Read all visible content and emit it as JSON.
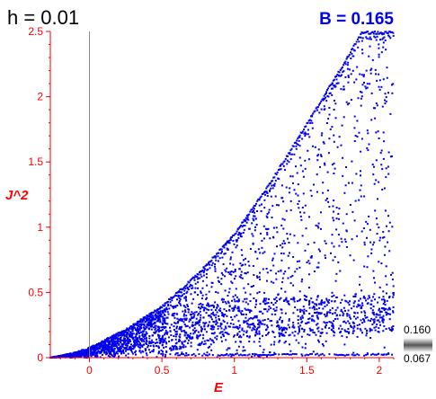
{
  "header": {
    "left_label": "h = 0.01",
    "right_label": "B = 0.165"
  },
  "colors": {
    "points": "#0000ee",
    "axes": "#ff0000",
    "label_right": "#0000ee",
    "vline": "#888888"
  },
  "colorbar": {
    "max_label": "0.160",
    "min_label": "0.067"
  },
  "chart_data": {
    "type": "scatter",
    "xlabel": "E",
    "ylabel": "J^2",
    "xlim": [
      -0.27,
      2.1
    ],
    "ylim": [
      0,
      2.5
    ],
    "xticks": [
      0,
      0.5,
      1,
      1.5,
      2
    ],
    "yticks": [
      0,
      0.5,
      1,
      1.5,
      2,
      2.5
    ],
    "reference_line_x": 0,
    "grid": false,
    "envelope": [
      {
        "x": -0.27,
        "y": 0.0
      },
      {
        "x": -0.1,
        "y": 0.04
      },
      {
        "x": 0.0,
        "y": 0.08
      },
      {
        "x": 0.25,
        "y": 0.22
      },
      {
        "x": 0.5,
        "y": 0.4
      },
      {
        "x": 0.75,
        "y": 0.65
      },
      {
        "x": 1.0,
        "y": 0.95
      },
      {
        "x": 1.25,
        "y": 1.35
      },
      {
        "x": 1.5,
        "y": 1.8
      },
      {
        "x": 1.75,
        "y": 2.25
      },
      {
        "x": 1.88,
        "y": 2.5
      }
    ],
    "dense_band": [
      {
        "x": 0.5,
        "y": 0.18
      },
      {
        "x": 1.0,
        "y": 0.3
      },
      {
        "x": 1.5,
        "y": 0.32
      },
      {
        "x": 2.1,
        "y": 0.35
      }
    ]
  }
}
